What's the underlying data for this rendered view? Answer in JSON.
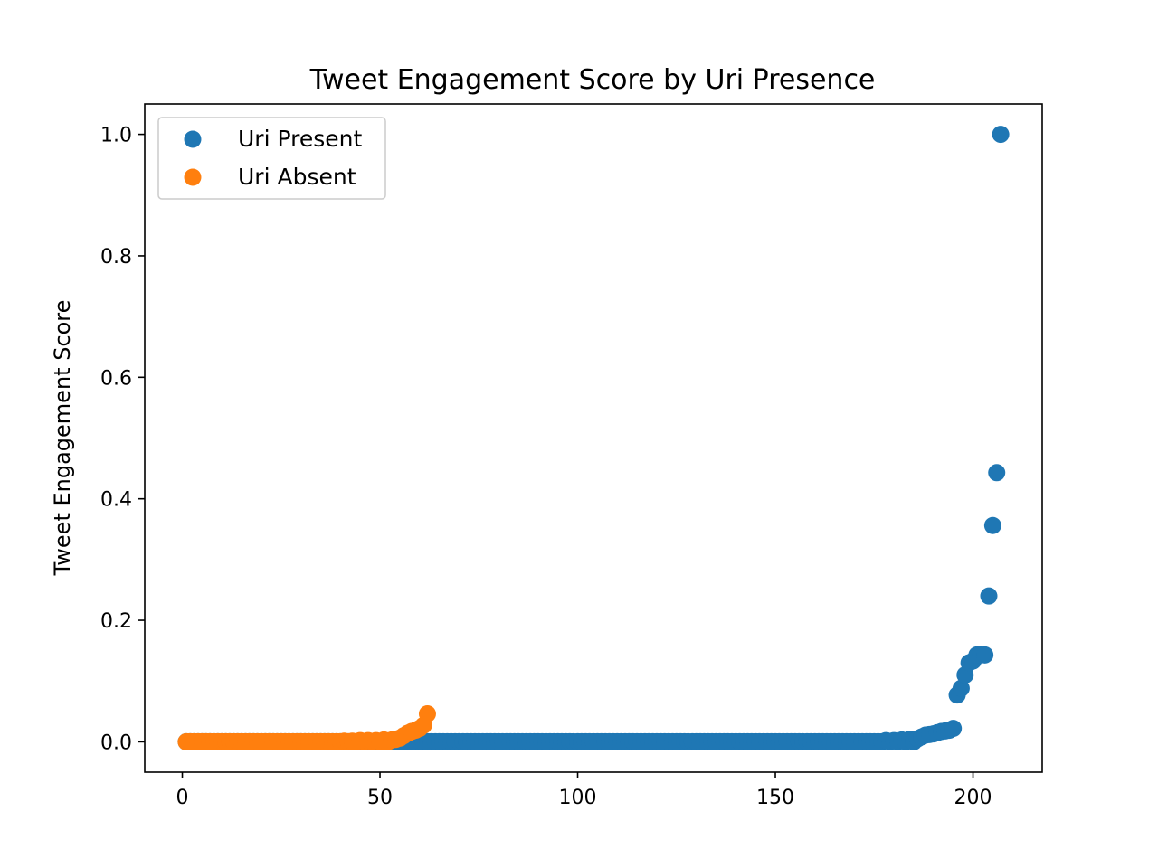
{
  "chart_data": {
    "type": "scatter",
    "title": "Tweet Engagement Score by Uri Presence",
    "xlabel": "",
    "ylabel": "Tweet Engagement Score",
    "xlim": [
      -9.5,
      217.5
    ],
    "ylim": [
      -0.05,
      1.05
    ],
    "x_ticks": [
      0,
      50,
      100,
      150,
      200
    ],
    "y_ticks": [
      0.0,
      0.2,
      0.4,
      0.6,
      0.8,
      1.0
    ],
    "y_tick_labels": [
      "0.0",
      "0.2",
      "0.4",
      "0.6",
      "0.8",
      "1.0"
    ],
    "grid": false,
    "legend_position": "top-left",
    "series": [
      {
        "name": "Uri Present",
        "color": "#1f77b4",
        "x_range": [
          1,
          207
        ],
        "points": [
          [
            178,
            0.002
          ],
          [
            180,
            0.002
          ],
          [
            182,
            0.003
          ],
          [
            184,
            0.004
          ],
          [
            186,
            0.005
          ],
          [
            187,
            0.008
          ],
          [
            188,
            0.011
          ],
          [
            189,
            0.012
          ],
          [
            190,
            0.013
          ],
          [
            191,
            0.015
          ],
          [
            192,
            0.017
          ],
          [
            193,
            0.018
          ],
          [
            194,
            0.019
          ],
          [
            195,
            0.022
          ],
          [
            196,
            0.077
          ],
          [
            197,
            0.088
          ],
          [
            198,
            0.11
          ],
          [
            199,
            0.13
          ],
          [
            200,
            0.133
          ],
          [
            201,
            0.143
          ],
          [
            202,
            0.143
          ],
          [
            203,
            0.143
          ],
          [
            204,
            0.24
          ],
          [
            205,
            0.356
          ],
          [
            206,
            0.443
          ],
          [
            207,
            1.0
          ]
        ]
      },
      {
        "name": "Uri Absent",
        "color": "#ff7f0e",
        "x_range": [
          1,
          62
        ],
        "points": [
          [
            41,
            0.001
          ],
          [
            43,
            0.001
          ],
          [
            45,
            0.002
          ],
          [
            47,
            0.002
          ],
          [
            49,
            0.002
          ],
          [
            51,
            0.003
          ],
          [
            53,
            0.003
          ],
          [
            54,
            0.004
          ],
          [
            55,
            0.006
          ],
          [
            56,
            0.01
          ],
          [
            57,
            0.014
          ],
          [
            58,
            0.017
          ],
          [
            59,
            0.019
          ],
          [
            60,
            0.022
          ],
          [
            61,
            0.027
          ],
          [
            62,
            0.046
          ]
        ]
      }
    ]
  }
}
